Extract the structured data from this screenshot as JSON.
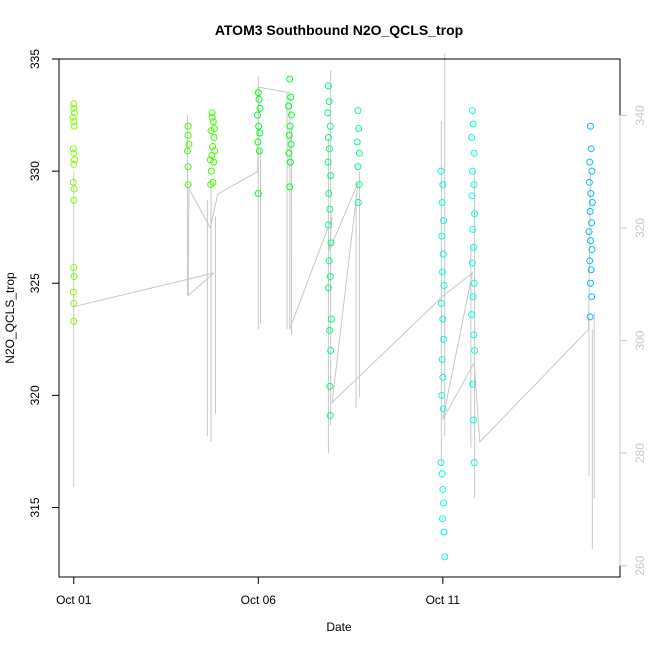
{
  "chart_data": {
    "type": "scatter",
    "title": "ATOM3 Southbound N2O_QCLS_trop",
    "xlabel": "Date",
    "ylabel": "N2O_QCLS_trop",
    "x_ticks": [
      {
        "label": "Oct 01",
        "day": 1.0
      },
      {
        "label": "Oct 06",
        "day": 6.0
      },
      {
        "label": "Oct 11",
        "day": 11.0
      }
    ],
    "xlim": [
      0.6,
      15.8
    ],
    "ylim": [
      311.9,
      335.0
    ],
    "y_ticks": [
      315,
      320,
      325,
      330,
      335
    ],
    "y2_ticks": [
      260,
      280,
      300,
      320,
      340
    ],
    "y2lim": [
      258.0,
      350.0
    ],
    "y2_color": "#c8c8c8",
    "grid": false,
    "legend": "none",
    "series": [
      {
        "color": "#7fff00",
        "points": [
          [
            1.0,
            333.0
          ],
          [
            1.0,
            332.8
          ],
          [
            1.02,
            332.6
          ],
          [
            0.98,
            332.4
          ],
          [
            1.0,
            332.2
          ],
          [
            1.01,
            332.0
          ],
          [
            0.99,
            331.0
          ],
          [
            1.0,
            330.8
          ],
          [
            1.02,
            330.5
          ],
          [
            1.0,
            330.3
          ],
          [
            0.99,
            329.5
          ],
          [
            1.01,
            329.2
          ],
          [
            1.0,
            328.7
          ],
          [
            1.0,
            325.7
          ],
          [
            1.01,
            325.3
          ],
          [
            0.99,
            324.6
          ],
          [
            1.0,
            324.1
          ],
          [
            1.0,
            323.3
          ]
        ]
      },
      {
        "color": "#3fff00",
        "points": [
          [
            4.1,
            332.0
          ],
          [
            4.1,
            331.6
          ],
          [
            4.12,
            331.2
          ],
          [
            4.08,
            330.9
          ],
          [
            4.1,
            330.2
          ],
          [
            4.1,
            329.4
          ],
          [
            4.75,
            332.6
          ],
          [
            4.78,
            332.2
          ],
          [
            4.72,
            331.8
          ],
          [
            4.8,
            331.5
          ],
          [
            4.76,
            331.1
          ],
          [
            4.74,
            330.7
          ],
          [
            4.79,
            330.4
          ],
          [
            4.73,
            330.0
          ],
          [
            4.77,
            329.5
          ],
          [
            4.71,
            329.4
          ],
          [
            4.82,
            330.9
          ],
          [
            4.7,
            330.5
          ],
          [
            4.81,
            331.9
          ],
          [
            4.75,
            332.4
          ]
        ]
      },
      {
        "color": "#00ff1f",
        "points": [
          [
            6.0,
            333.5
          ],
          [
            6.02,
            333.2
          ],
          [
            6.05,
            332.8
          ],
          [
            5.98,
            332.5
          ],
          [
            6.01,
            332.0
          ],
          [
            6.04,
            331.7
          ],
          [
            5.99,
            331.3
          ],
          [
            6.03,
            330.9
          ],
          [
            6.0,
            329.0
          ],
          [
            6.85,
            334.1
          ],
          [
            6.88,
            333.3
          ],
          [
            6.82,
            332.9
          ],
          [
            6.9,
            332.5
          ],
          [
            6.86,
            332.0
          ],
          [
            6.84,
            331.6
          ],
          [
            6.89,
            331.2
          ],
          [
            6.83,
            330.8
          ],
          [
            6.87,
            330.4
          ],
          [
            6.85,
            329.3
          ]
        ]
      },
      {
        "color": "#00ff7f",
        "points": [
          [
            7.9,
            333.8
          ],
          [
            7.92,
            333.1
          ],
          [
            7.88,
            332.6
          ],
          [
            7.95,
            332.0
          ],
          [
            7.9,
            331.5
          ],
          [
            7.93,
            331.0
          ],
          [
            7.89,
            330.4
          ],
          [
            7.96,
            329.8
          ],
          [
            7.91,
            329.0
          ],
          [
            7.94,
            328.3
          ],
          [
            7.9,
            327.6
          ],
          [
            7.97,
            326.8
          ],
          [
            7.92,
            326.0
          ],
          [
            7.95,
            325.3
          ],
          [
            7.9,
            324.8
          ],
          [
            7.98,
            323.4
          ],
          [
            7.93,
            322.9
          ],
          [
            7.96,
            322.0
          ],
          [
            7.94,
            320.4
          ],
          [
            7.95,
            319.1
          ],
          [
            8.7,
            332.7
          ],
          [
            8.72,
            331.9
          ],
          [
            8.68,
            331.3
          ],
          [
            8.74,
            330.8
          ],
          [
            8.7,
            330.2
          ],
          [
            8.73,
            329.4
          ],
          [
            8.71,
            328.6
          ]
        ]
      },
      {
        "color": "#00ffdf",
        "points": [
          [
            10.95,
            330.0
          ],
          [
            11.0,
            329.4
          ],
          [
            10.98,
            328.6
          ],
          [
            11.02,
            327.8
          ],
          [
            10.97,
            327.1
          ],
          [
            11.01,
            326.3
          ],
          [
            10.99,
            325.5
          ],
          [
            11.03,
            324.9
          ],
          [
            10.96,
            324.1
          ],
          [
            11.0,
            323.4
          ],
          [
            11.02,
            322.5
          ],
          [
            10.98,
            321.6
          ],
          [
            11.0,
            320.8
          ],
          [
            10.97,
            320.0
          ],
          [
            11.01,
            319.4
          ],
          [
            10.95,
            317.0
          ],
          [
            10.98,
            316.5
          ],
          [
            11.0,
            315.8
          ],
          [
            11.02,
            315.2
          ],
          [
            10.99,
            314.5
          ],
          [
            11.03,
            313.9
          ],
          [
            11.05,
            312.8
          ],
          [
            11.8,
            332.7
          ],
          [
            11.82,
            332.1
          ],
          [
            11.78,
            331.5
          ],
          [
            11.85,
            330.8
          ],
          [
            11.8,
            330.0
          ],
          [
            11.84,
            329.4
          ],
          [
            11.79,
            328.9
          ],
          [
            11.86,
            328.1
          ],
          [
            11.81,
            327.4
          ],
          [
            11.83,
            326.6
          ],
          [
            11.8,
            325.9
          ],
          [
            11.85,
            325.0
          ],
          [
            11.82,
            324.4
          ],
          [
            11.78,
            323.6
          ],
          [
            11.84,
            322.7
          ],
          [
            11.86,
            322.0
          ],
          [
            11.81,
            320.5
          ],
          [
            11.83,
            318.9
          ],
          [
            11.85,
            317.0
          ]
        ]
      },
      {
        "color": "#00bfff",
        "points": [
          [
            15.0,
            332.0
          ],
          [
            15.02,
            331.0
          ],
          [
            14.98,
            330.4
          ],
          [
            15.04,
            330.0
          ],
          [
            14.97,
            329.5
          ],
          [
            15.01,
            329.0
          ],
          [
            15.05,
            328.6
          ],
          [
            14.99,
            328.2
          ],
          [
            15.03,
            327.7
          ],
          [
            14.96,
            327.3
          ],
          [
            15.0,
            326.9
          ],
          [
            15.04,
            326.5
          ],
          [
            14.98,
            326.0
          ],
          [
            15.02,
            325.6
          ],
          [
            15.0,
            325.0
          ],
          [
            15.03,
            324.4
          ],
          [
            14.99,
            323.5
          ]
        ]
      }
    ],
    "secondary_line": {
      "color": "#c8c8c8",
      "points": [
        [
          1.0,
          306.0
        ],
        [
          4.8,
          312.0
        ],
        [
          4.1,
          308.0
        ],
        [
          4.12,
          327.0
        ],
        [
          4.7,
          320.0
        ],
        [
          4.9,
          326.0
        ],
        [
          5.98,
          330.0
        ],
        [
          6.02,
          345.0
        ],
        [
          6.86,
          344.0
        ],
        [
          6.85,
          302.0
        ],
        [
          8.0,
          322.0
        ],
        [
          7.92,
          316.0
        ],
        [
          8.7,
          328.0
        ],
        [
          8.0,
          289.0
        ],
        [
          11.02,
          308.0
        ],
        [
          11.8,
          312.0
        ],
        [
          11.0,
          286.0
        ],
        [
          11.85,
          296.0
        ],
        [
          12.0,
          282.0
        ],
        [
          14.95,
          302.0
        ],
        [
          15.0,
          330.0
        ]
      ],
      "spikes": [
        {
          "x": 1.0,
          "y_lo": 274.0,
          "y_hi": 330.0
        },
        {
          "x": 4.08,
          "y_lo": 308.0,
          "y_hi": 340.0
        },
        {
          "x": 4.62,
          "y_lo": 283.0,
          "y_hi": 325.0
        },
        {
          "x": 4.72,
          "y_lo": 282.0,
          "y_hi": 328.0
        },
        {
          "x": 4.84,
          "y_lo": 287.0,
          "y_hi": 322.0
        },
        {
          "x": 6.0,
          "y_lo": 302.0,
          "y_hi": 347.0
        },
        {
          "x": 6.06,
          "y_lo": 303.0,
          "y_hi": 334.0
        },
        {
          "x": 6.78,
          "y_lo": 302.0,
          "y_hi": 344.0
        },
        {
          "x": 6.9,
          "y_lo": 301.0,
          "y_hi": 338.0
        },
        {
          "x": 7.9,
          "y_lo": 280.0,
          "y_hi": 336.0
        },
        {
          "x": 7.96,
          "y_lo": 285.0,
          "y_hi": 348.0
        },
        {
          "x": 8.65,
          "y_lo": 288.0,
          "y_hi": 326.0
        },
        {
          "x": 8.74,
          "y_lo": 290.0,
          "y_hi": 330.0
        },
        {
          "x": 10.96,
          "y_lo": 278.0,
          "y_hi": 339.0
        },
        {
          "x": 11.05,
          "y_lo": 283.0,
          "y_hi": 351.0
        },
        {
          "x": 11.76,
          "y_lo": 281.0,
          "y_hi": 317.0
        },
        {
          "x": 11.86,
          "y_lo": 272.0,
          "y_hi": 330.0
        },
        {
          "x": 14.96,
          "y_lo": 276.0,
          "y_hi": 305.0
        },
        {
          "x": 15.05,
          "y_lo": 263.0,
          "y_hi": 302.0
        },
        {
          "x": 15.1,
          "y_lo": 272.0,
          "y_hi": 305.0
        }
      ]
    }
  }
}
